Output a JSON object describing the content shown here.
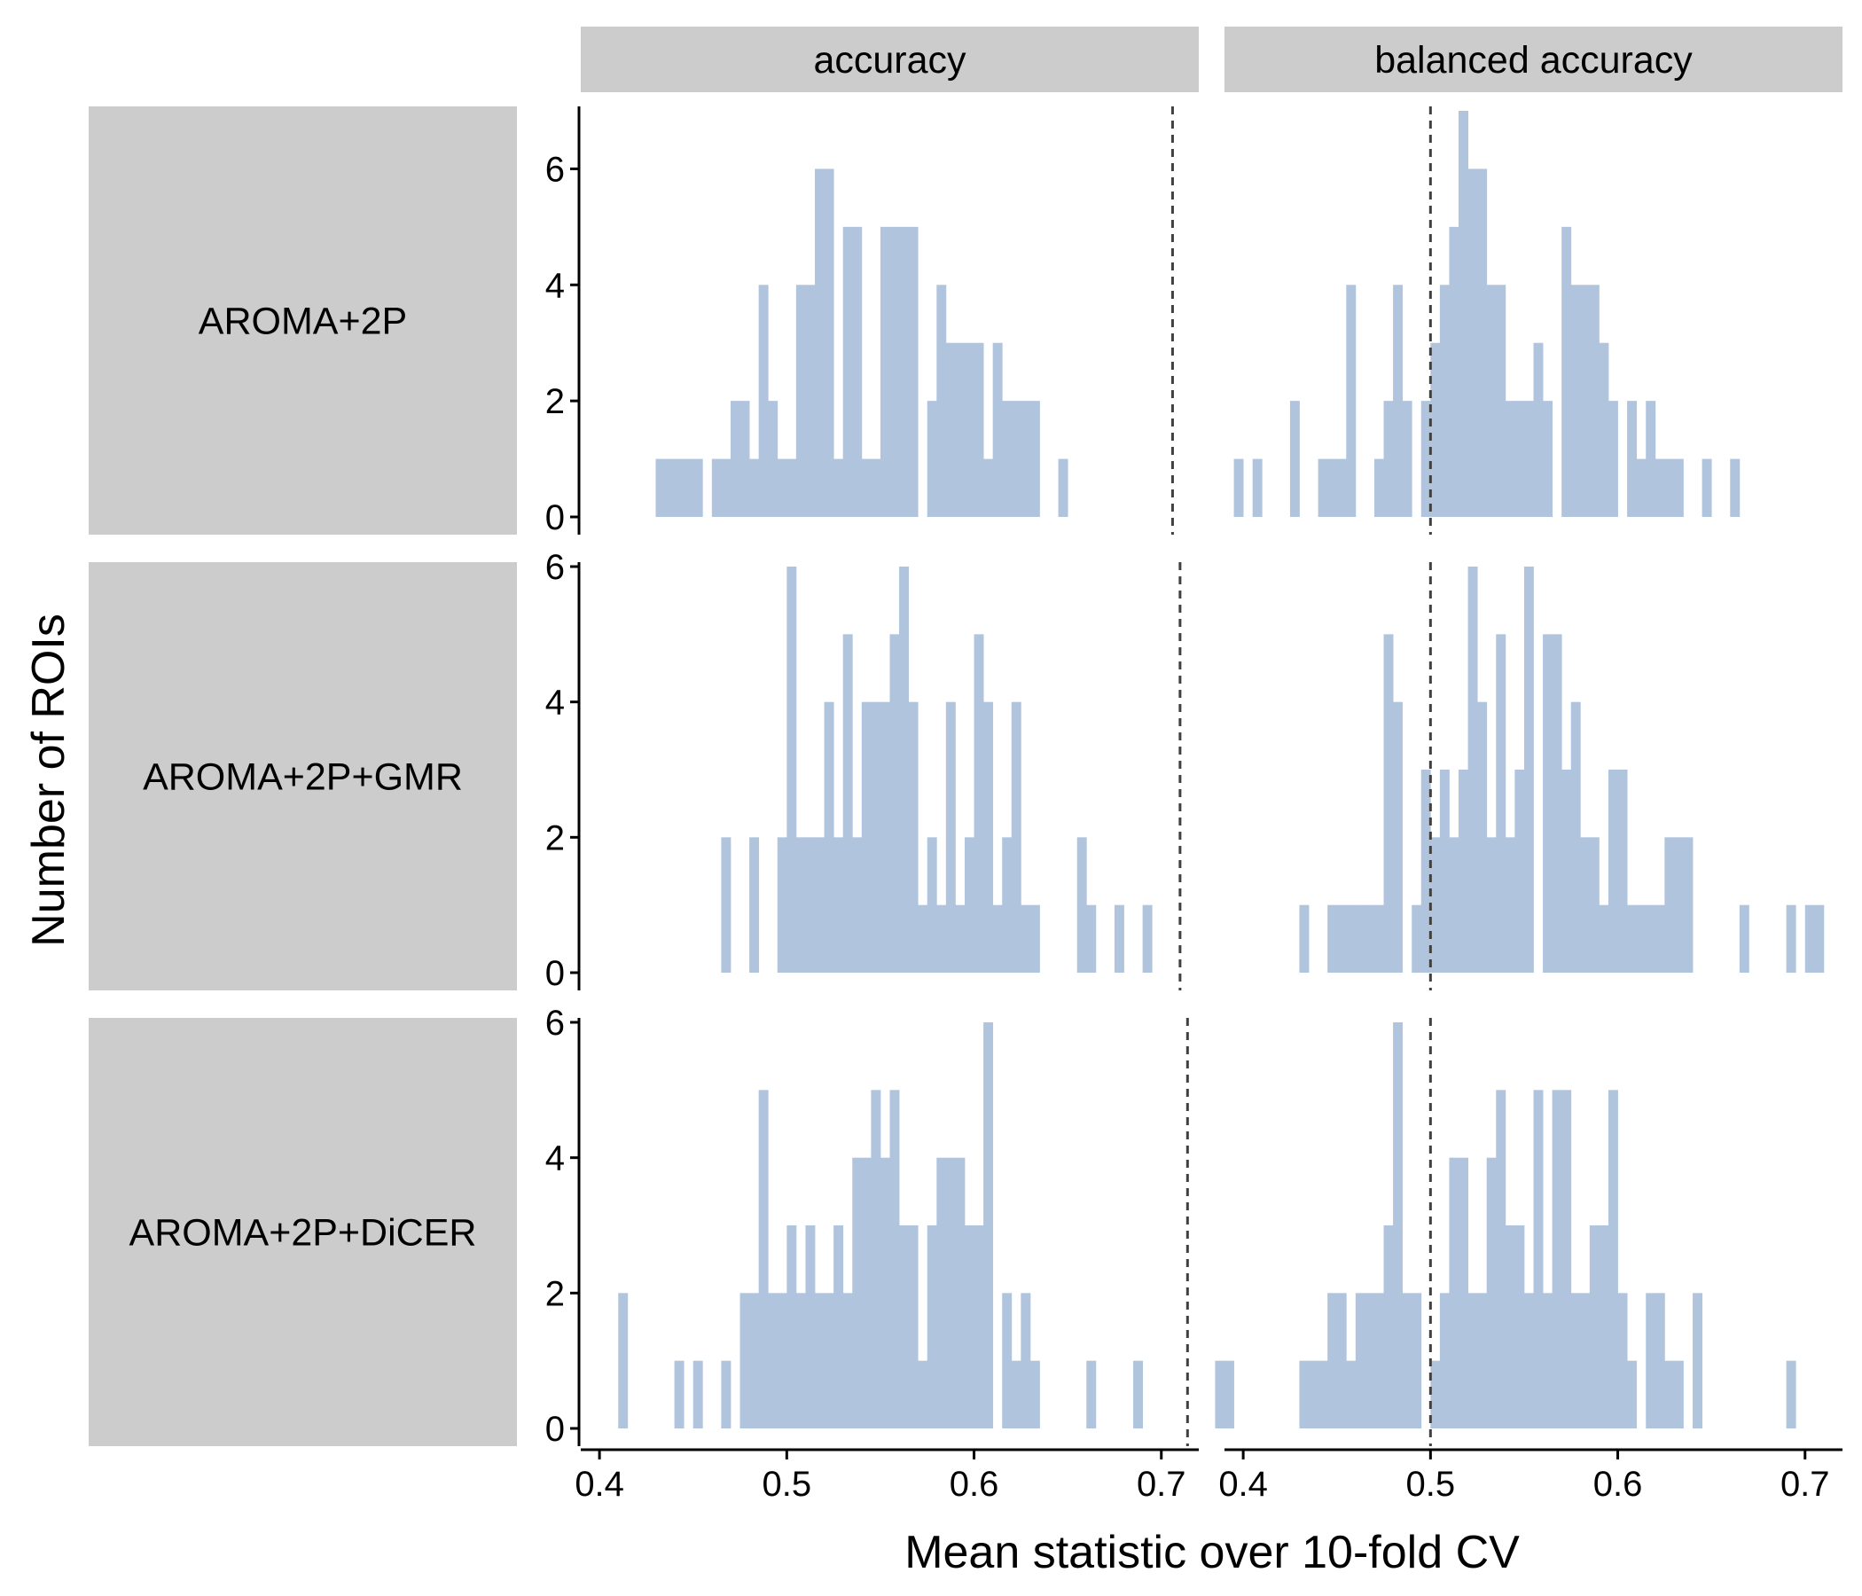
{
  "chart_data": {
    "type": "bar",
    "subtype": "faceted-histogram",
    "xlabel": "Mean statistic over 10-fold CV",
    "ylabel": "Number of ROIs",
    "column_facets": [
      "accuracy",
      "balanced accuracy"
    ],
    "row_facets": [
      "AROMA+2P",
      "AROMA+2P+GMR",
      "AROMA+2P+DiCER"
    ],
    "xlim": [
      0.39,
      0.72
    ],
    "x_ticks": [
      0.4,
      0.5,
      0.6,
      0.7
    ],
    "x_tick_labels": [
      "0.4",
      "0.5",
      "0.6",
      "0.7"
    ],
    "y_tick_labels": [
      "0",
      "2",
      "4",
      "6"
    ],
    "bin_width": 0.005,
    "bar_color": "#b0c4de",
    "facet_strip_color": "#cccccc",
    "reference_line_color": "#404040",
    "grid": false,
    "panels": [
      {
        "row": "AROMA+2P",
        "column": "accuracy",
        "ylim": [
          0,
          7
        ],
        "reference_line": 0.706,
        "bins": [
          [
            0.4325,
            1
          ],
          [
            0.4375,
            1
          ],
          [
            0.4425,
            1
          ],
          [
            0.4475,
            1
          ],
          [
            0.4525,
            1
          ],
          [
            0.4625,
            1
          ],
          [
            0.4675,
            1
          ],
          [
            0.4725,
            2
          ],
          [
            0.4775,
            2
          ],
          [
            0.4825,
            1
          ],
          [
            0.4875,
            4
          ],
          [
            0.4925,
            2
          ],
          [
            0.4975,
            1
          ],
          [
            0.5025,
            1
          ],
          [
            0.5075,
            4
          ],
          [
            0.5125,
            4
          ],
          [
            0.5175,
            6
          ],
          [
            0.5225,
            6
          ],
          [
            0.5275,
            1
          ],
          [
            0.5325,
            5
          ],
          [
            0.5375,
            5
          ],
          [
            0.5425,
            1
          ],
          [
            0.5475,
            1
          ],
          [
            0.5525,
            5
          ],
          [
            0.5575,
            5
          ],
          [
            0.5625,
            5
          ],
          [
            0.5675,
            5
          ],
          [
            0.5775,
            2
          ],
          [
            0.5825,
            4
          ],
          [
            0.5875,
            3
          ],
          [
            0.5925,
            3
          ],
          [
            0.5975,
            3
          ],
          [
            0.6025,
            3
          ],
          [
            0.6075,
            1
          ],
          [
            0.6125,
            3
          ],
          [
            0.6175,
            2
          ],
          [
            0.6225,
            2
          ],
          [
            0.6275,
            2
          ],
          [
            0.6325,
            2
          ],
          [
            0.6475,
            1
          ]
        ]
      },
      {
        "row": "AROMA+2P",
        "column": "balanced accuracy",
        "ylim": [
          0,
          7
        ],
        "reference_line": 0.5,
        "bins": [
          [
            0.3975,
            1
          ],
          [
            0.4075,
            1
          ],
          [
            0.4275,
            2
          ],
          [
            0.4425,
            1
          ],
          [
            0.4475,
            1
          ],
          [
            0.4525,
            1
          ],
          [
            0.4575,
            4
          ],
          [
            0.4725,
            1
          ],
          [
            0.4775,
            2
          ],
          [
            0.4825,
            4
          ],
          [
            0.4875,
            2
          ],
          [
            0.4975,
            2
          ],
          [
            0.5025,
            3
          ],
          [
            0.5075,
            4
          ],
          [
            0.5125,
            5
          ],
          [
            0.5175,
            7
          ],
          [
            0.5225,
            6
          ],
          [
            0.5275,
            6
          ],
          [
            0.5325,
            4
          ],
          [
            0.5375,
            4
          ],
          [
            0.5425,
            2
          ],
          [
            0.5475,
            2
          ],
          [
            0.5525,
            2
          ],
          [
            0.5575,
            3
          ],
          [
            0.5625,
            2
          ],
          [
            0.5725,
            5
          ],
          [
            0.5775,
            4
          ],
          [
            0.5825,
            4
          ],
          [
            0.5875,
            4
          ],
          [
            0.5925,
            3
          ],
          [
            0.5975,
            2
          ],
          [
            0.6075,
            2
          ],
          [
            0.6125,
            1
          ],
          [
            0.6175,
            2
          ],
          [
            0.6225,
            1
          ],
          [
            0.6275,
            1
          ],
          [
            0.6325,
            1
          ],
          [
            0.6475,
            1
          ],
          [
            0.6625,
            1
          ]
        ]
      },
      {
        "row": "AROMA+2P+GMR",
        "column": "accuracy",
        "ylim": [
          0,
          6
        ],
        "reference_line": 0.71,
        "bins": [
          [
            0.4675,
            2
          ],
          [
            0.4825,
            2
          ],
          [
            0.4975,
            2
          ],
          [
            0.5025,
            6
          ],
          [
            0.5075,
            2
          ],
          [
            0.5125,
            2
          ],
          [
            0.5175,
            2
          ],
          [
            0.5225,
            4
          ],
          [
            0.5275,
            2
          ],
          [
            0.5325,
            5
          ],
          [
            0.5375,
            2
          ],
          [
            0.5425,
            4
          ],
          [
            0.5475,
            4
          ],
          [
            0.5525,
            4
          ],
          [
            0.5575,
            5
          ],
          [
            0.5625,
            6
          ],
          [
            0.5675,
            4
          ],
          [
            0.5725,
            1
          ],
          [
            0.5775,
            2
          ],
          [
            0.5825,
            1
          ],
          [
            0.5875,
            4
          ],
          [
            0.5925,
            1
          ],
          [
            0.5975,
            2
          ],
          [
            0.6025,
            5
          ],
          [
            0.6075,
            4
          ],
          [
            0.6125,
            1
          ],
          [
            0.6175,
            2
          ],
          [
            0.6225,
            4
          ],
          [
            0.6275,
            1
          ],
          [
            0.6325,
            1
          ],
          [
            0.6575,
            2
          ],
          [
            0.6625,
            1
          ],
          [
            0.6775,
            1
          ],
          [
            0.6925,
            1
          ]
        ]
      },
      {
        "row": "AROMA+2P+GMR",
        "column": "balanced accuracy",
        "ylim": [
          0,
          6
        ],
        "reference_line": 0.5,
        "bins": [
          [
            0.4325,
            1
          ],
          [
            0.4475,
            1
          ],
          [
            0.4525,
            1
          ],
          [
            0.4575,
            1
          ],
          [
            0.4625,
            1
          ],
          [
            0.4675,
            1
          ],
          [
            0.4725,
            1
          ],
          [
            0.4775,
            5
          ],
          [
            0.4825,
            4
          ],
          [
            0.4925,
            1
          ],
          [
            0.4975,
            3
          ],
          [
            0.5025,
            2
          ],
          [
            0.5075,
            3
          ],
          [
            0.5125,
            2
          ],
          [
            0.5175,
            3
          ],
          [
            0.5225,
            6
          ],
          [
            0.5275,
            4
          ],
          [
            0.5325,
            2
          ],
          [
            0.5375,
            5
          ],
          [
            0.5425,
            2
          ],
          [
            0.5475,
            3
          ],
          [
            0.5525,
            6
          ],
          [
            0.5625,
            5
          ],
          [
            0.5675,
            5
          ],
          [
            0.5725,
            3
          ],
          [
            0.5775,
            4
          ],
          [
            0.5825,
            2
          ],
          [
            0.5875,
            2
          ],
          [
            0.5925,
            1
          ],
          [
            0.5975,
            3
          ],
          [
            0.6025,
            3
          ],
          [
            0.6075,
            1
          ],
          [
            0.6125,
            1
          ],
          [
            0.6175,
            1
          ],
          [
            0.6225,
            1
          ],
          [
            0.6275,
            2
          ],
          [
            0.6325,
            2
          ],
          [
            0.6375,
            2
          ],
          [
            0.6675,
            1
          ],
          [
            0.6925,
            1
          ],
          [
            0.7025,
            1
          ],
          [
            0.7075,
            1
          ]
        ]
      },
      {
        "row": "AROMA+2P+DiCER",
        "column": "accuracy",
        "ylim": [
          0,
          6
        ],
        "reference_line": 0.714,
        "bins": [
          [
            0.4125,
            2
          ],
          [
            0.4425,
            1
          ],
          [
            0.4525,
            1
          ],
          [
            0.4675,
            1
          ],
          [
            0.4775,
            2
          ],
          [
            0.4825,
            2
          ],
          [
            0.4875,
            5
          ],
          [
            0.4925,
            2
          ],
          [
            0.4975,
            2
          ],
          [
            0.5025,
            3
          ],
          [
            0.5075,
            2
          ],
          [
            0.5125,
            3
          ],
          [
            0.5175,
            2
          ],
          [
            0.5225,
            2
          ],
          [
            0.5275,
            3
          ],
          [
            0.5325,
            2
          ],
          [
            0.5375,
            4
          ],
          [
            0.5425,
            4
          ],
          [
            0.5475,
            5
          ],
          [
            0.5525,
            4
          ],
          [
            0.5575,
            5
          ],
          [
            0.5625,
            3
          ],
          [
            0.5675,
            3
          ],
          [
            0.5725,
            1
          ],
          [
            0.5775,
            3
          ],
          [
            0.5825,
            4
          ],
          [
            0.5875,
            4
          ],
          [
            0.5925,
            4
          ],
          [
            0.5975,
            3
          ],
          [
            0.6025,
            3
          ],
          [
            0.6075,
            6
          ],
          [
            0.6175,
            2
          ],
          [
            0.6225,
            1
          ],
          [
            0.6275,
            2
          ],
          [
            0.6325,
            1
          ],
          [
            0.6625,
            1
          ],
          [
            0.6875,
            1
          ]
        ]
      },
      {
        "row": "AROMA+2P+DiCER",
        "column": "balanced accuracy",
        "ylim": [
          0,
          6
        ],
        "reference_line": 0.5,
        "bins": [
          [
            0.3875,
            1
          ],
          [
            0.3925,
            1
          ],
          [
            0.4325,
            1
          ],
          [
            0.4375,
            1
          ],
          [
            0.4425,
            1
          ],
          [
            0.4475,
            2
          ],
          [
            0.4525,
            2
          ],
          [
            0.4575,
            1
          ],
          [
            0.4625,
            2
          ],
          [
            0.4675,
            2
          ],
          [
            0.4725,
            2
          ],
          [
            0.4775,
            3
          ],
          [
            0.4825,
            6
          ],
          [
            0.4875,
            2
          ],
          [
            0.4925,
            2
          ],
          [
            0.5025,
            1
          ],
          [
            0.5075,
            2
          ],
          [
            0.5125,
            4
          ],
          [
            0.5175,
            4
          ],
          [
            0.5225,
            2
          ],
          [
            0.5275,
            2
          ],
          [
            0.5325,
            4
          ],
          [
            0.5375,
            5
          ],
          [
            0.5425,
            3
          ],
          [
            0.5475,
            3
          ],
          [
            0.5525,
            2
          ],
          [
            0.5575,
            5
          ],
          [
            0.5625,
            2
          ],
          [
            0.5675,
            5
          ],
          [
            0.5725,
            5
          ],
          [
            0.5775,
            2
          ],
          [
            0.5825,
            2
          ],
          [
            0.5875,
            3
          ],
          [
            0.5925,
            3
          ],
          [
            0.5975,
            5
          ],
          [
            0.6025,
            2
          ],
          [
            0.6075,
            1
          ],
          [
            0.6175,
            2
          ],
          [
            0.6225,
            2
          ],
          [
            0.6275,
            1
          ],
          [
            0.6325,
            1
          ],
          [
            0.6425,
            2
          ],
          [
            0.6925,
            1
          ]
        ]
      }
    ]
  }
}
